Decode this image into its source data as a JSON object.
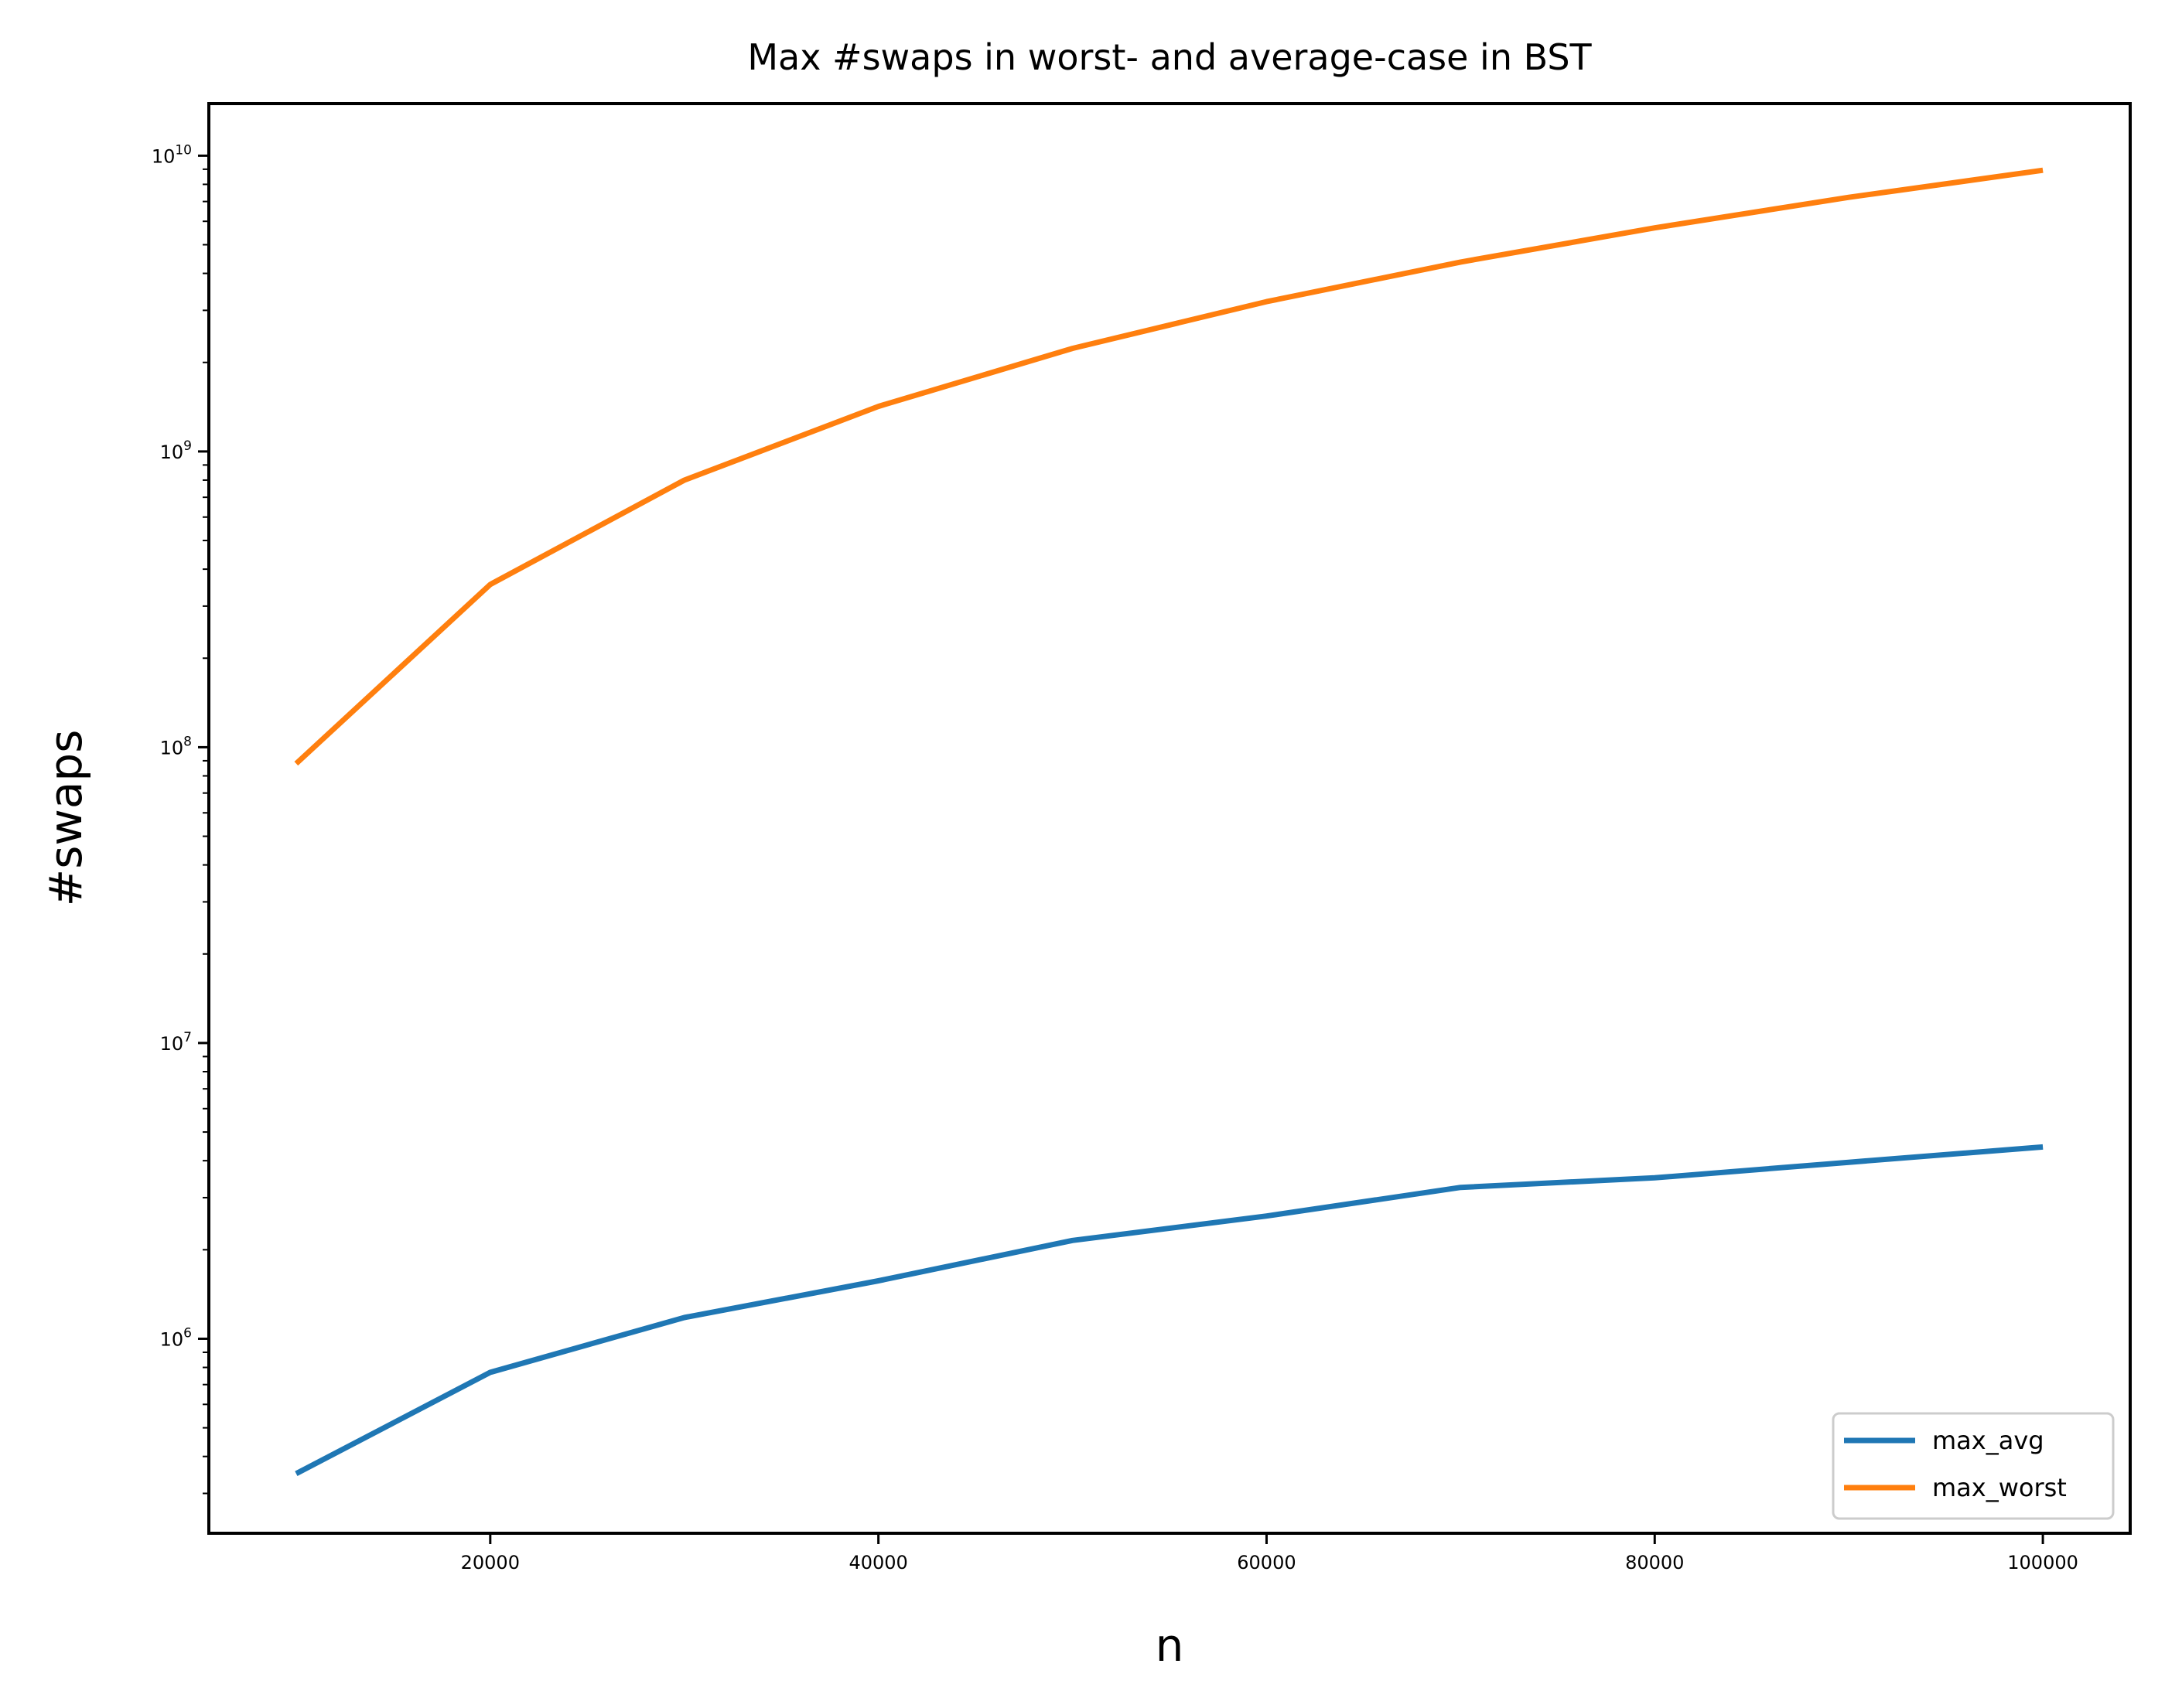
{
  "chart_data": {
    "type": "line",
    "title": "Max #swaps in worst- and average-case in BST",
    "xlabel": "n",
    "ylabel": "#swaps",
    "yscale": "log",
    "xlim": [
      5500,
      104500
    ],
    "ylim": [
      220000,
      15000000000
    ],
    "x_ticks": [
      {
        "value": 20000,
        "label": "20000"
      },
      {
        "value": 40000,
        "label": "40000"
      },
      {
        "value": 60000,
        "label": "60000"
      },
      {
        "value": 80000,
        "label": "80000"
      },
      {
        "value": 100000,
        "label": "100000"
      }
    ],
    "y_ticks": [
      {
        "value": 1000000,
        "base": "10",
        "exp": "6"
      },
      {
        "value": 10000000,
        "base": "10",
        "exp": "7"
      },
      {
        "value": 100000000,
        "base": "10",
        "exp": "8"
      },
      {
        "value": 1000000000,
        "base": "10",
        "exp": "9"
      },
      {
        "value": 10000000000,
        "base": "10",
        "exp": "10"
      }
    ],
    "grid": false,
    "legend_position": "bottom-right",
    "x": [
      10000,
      20000,
      30000,
      40000,
      50000,
      60000,
      70000,
      80000,
      90000,
      100000
    ],
    "series": [
      {
        "name": "max_avg",
        "color": "#1f77b4",
        "values": [
          350000,
          770000,
          1180000,
          1570000,
          2150000,
          2600000,
          3250000,
          3500000,
          3950000,
          4450000
        ]
      },
      {
        "name": "max_worst",
        "color": "#ff7f0e",
        "values": [
          88000000,
          355000000,
          800000000,
          1420000000,
          2230000000,
          3210000000,
          4370000000,
          5700000000,
          7230000000,
          8930000000
        ]
      }
    ]
  }
}
